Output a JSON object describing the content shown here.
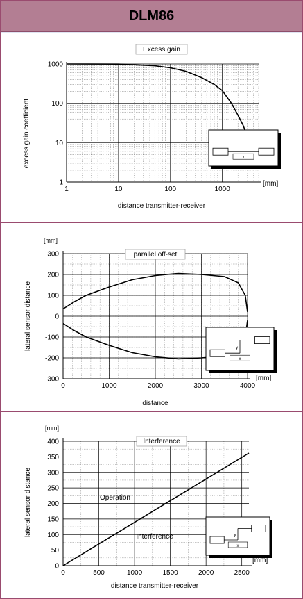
{
  "header": {
    "title": "DLM86"
  },
  "colors": {
    "header_bg": "#b37e93",
    "panel_bg": "#dfe4f2",
    "border": "#9a4b6f"
  },
  "chart_data": [
    {
      "type": "line",
      "title": "Excess gain",
      "xlabel": "distance transmitter-receiver",
      "ylabel": "excess gain coefficient",
      "x_unit": "[mm]",
      "xscale": "log",
      "yscale": "log",
      "xlim": [
        1,
        5000
      ],
      "ylim": [
        1,
        1000
      ],
      "x_ticks": [
        "1",
        "10",
        "100",
        "1000"
      ],
      "y_ticks": [
        "1",
        "10",
        "100",
        "1000"
      ],
      "grid": true,
      "series": [
        {
          "x": [
            1,
            10,
            50,
            100,
            200,
            400,
            700,
            1000,
            1500,
            2000,
            2500,
            3000,
            3500,
            4000
          ],
          "y": [
            1000,
            990,
            900,
            800,
            650,
            450,
            300,
            210,
            100,
            50,
            28,
            15,
            9,
            5
          ]
        }
      ],
      "inset": "sensor arrangement icon"
    },
    {
      "type": "line",
      "title": "parallel off-set",
      "xlabel": "distance",
      "ylabel": "lateral sensor distance",
      "x_unit": "[mm]",
      "y_unit": "[mm]",
      "xlim": [
        0,
        4000
      ],
      "ylim": [
        -300,
        300
      ],
      "x_ticks": [
        "0",
        "1000",
        "2000",
        "3000",
        "4000"
      ],
      "y_ticks": [
        "-300",
        "-200",
        "-100",
        "0",
        "100",
        "200",
        "300"
      ],
      "grid": true,
      "series": [
        {
          "x": [
            0,
            250,
            500,
            1000,
            1500,
            2000,
            2500,
            3000,
            3500,
            3800,
            3950,
            4000
          ],
          "y": [
            35,
            70,
            100,
            140,
            175,
            195,
            205,
            200,
            190,
            160,
            100,
            20
          ]
        },
        {
          "x": [
            0,
            250,
            500,
            1000,
            1500,
            2000,
            2500,
            3000,
            3500,
            3800,
            3950,
            4000
          ],
          "y": [
            -35,
            -70,
            -100,
            -140,
            -175,
            -195,
            -205,
            -200,
            -190,
            -160,
            -100,
            -20
          ]
        }
      ],
      "inset": "sensor arrangement icon (y, x)"
    },
    {
      "type": "line",
      "title": "Interference",
      "xlabel": "distance transmitter-receiver",
      "ylabel": "lateral sensor distance",
      "x_unit": "[mm]",
      "y_unit": "[mm]",
      "xlim": [
        0,
        2600
      ],
      "ylim": [
        0,
        400
      ],
      "x_ticks": [
        "0",
        "500",
        "1000",
        "1500",
        "2000",
        "2500"
      ],
      "y_ticks": [
        "0",
        "50",
        "100",
        "150",
        "200",
        "250",
        "300",
        "350",
        "400"
      ],
      "grid": true,
      "series": [
        {
          "x": [
            0,
            2600
          ],
          "y": [
            0,
            362
          ]
        }
      ],
      "annotations": [
        "Operation",
        "Interference"
      ],
      "inset": "sensor arrangement icon (y, x)"
    }
  ]
}
